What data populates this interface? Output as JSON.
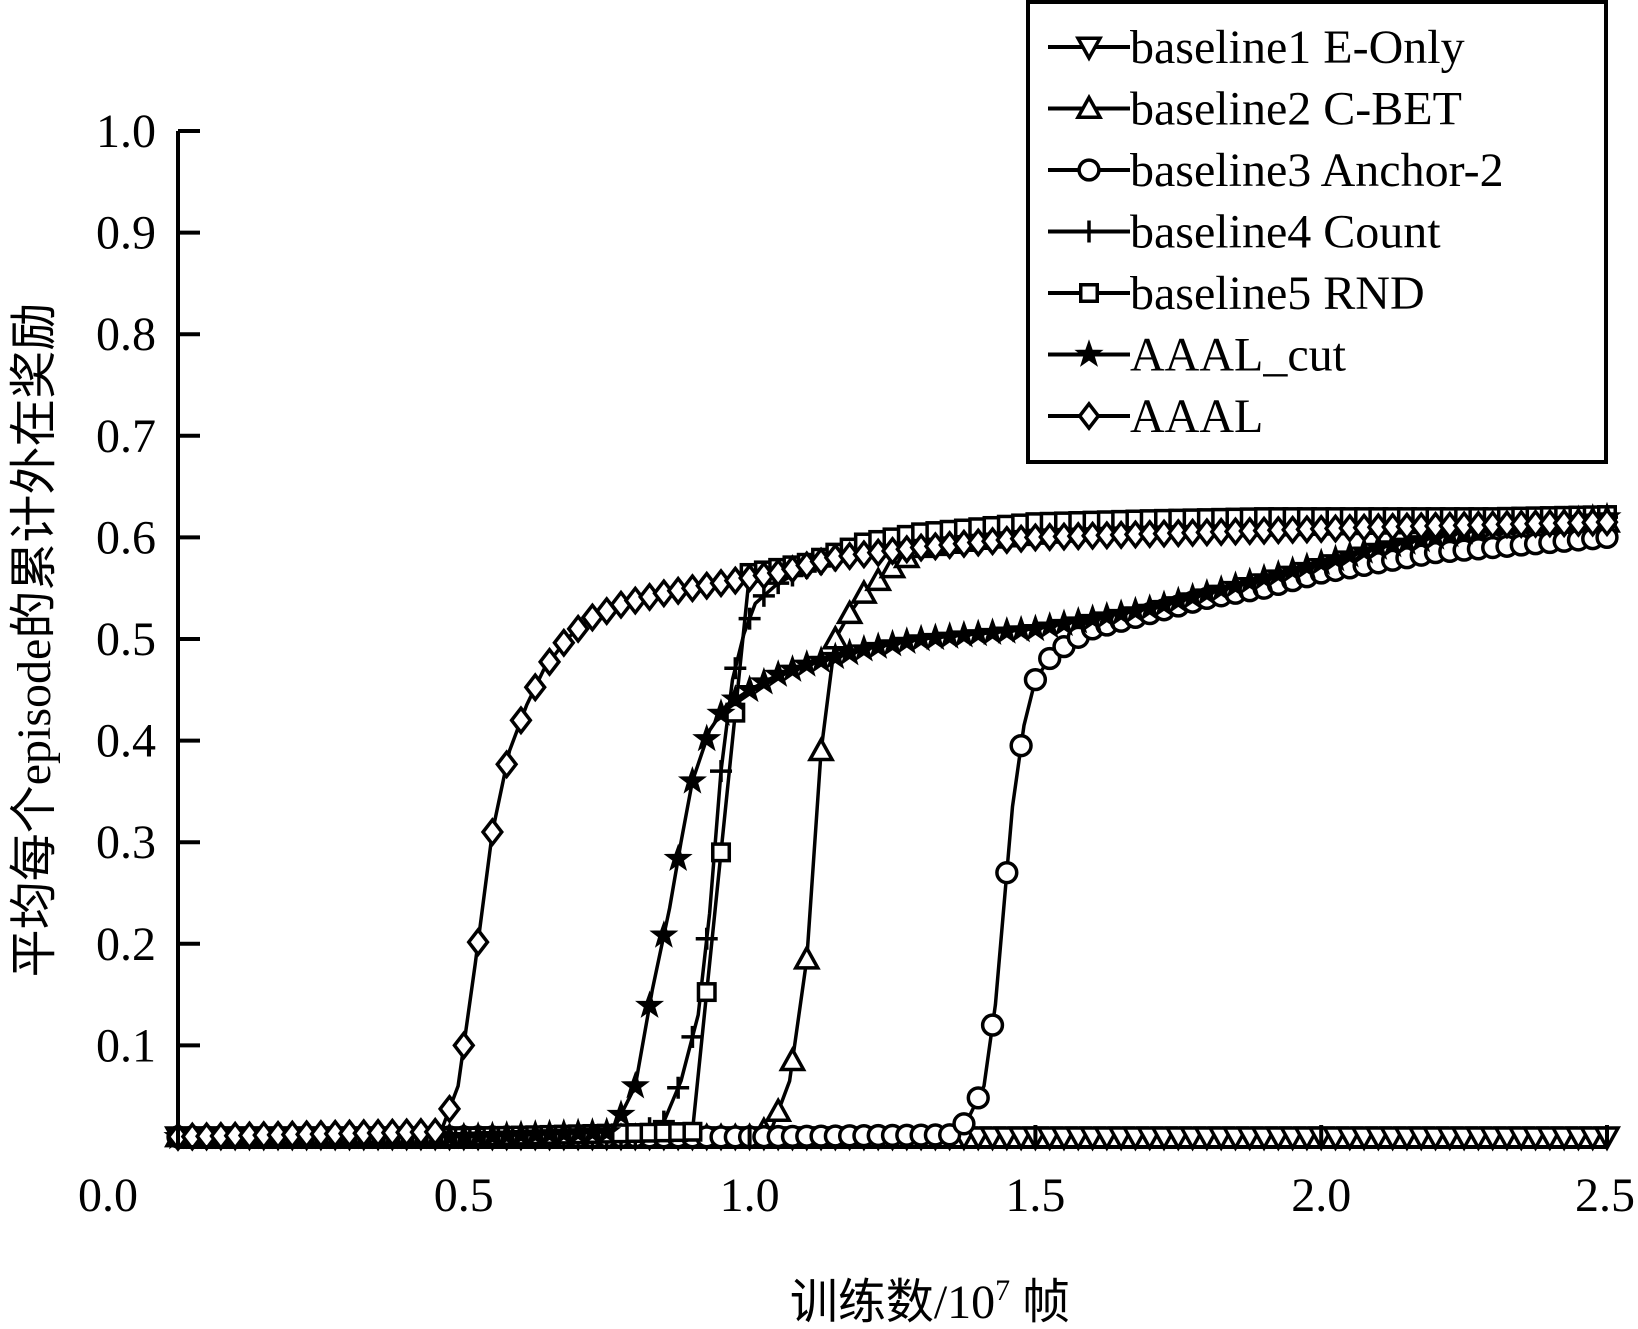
{
  "chart_data": {
    "type": "line",
    "xlabel": "训练数/10⁷ 帧",
    "xlabel_main": "训练数/10",
    "xlabel_sup": "7",
    "xlabel_unit": " 帧",
    "ylabel": "平均每个episode的累计外在奖励",
    "xlim": [
      0,
      2.5
    ],
    "ylim": [
      0,
      1.0
    ],
    "x_ticks": [
      "0.0",
      "0.5",
      "1.0",
      "1.5",
      "2.0",
      "2.5"
    ],
    "y_ticks": [
      "0.1",
      "0.2",
      "0.3",
      "0.4",
      "0.5",
      "0.6",
      "0.7",
      "0.8",
      "0.9",
      "1.0"
    ],
    "grid": false,
    "legend_position": "top-right",
    "series": [
      {
        "name": "baseline1 E-Only",
        "marker": "triangle-down",
        "x": [
          0.0,
          0.5,
          1.0,
          1.5,
          2.0,
          2.5
        ],
        "y": [
          0.01,
          0.01,
          0.01,
          0.01,
          0.01,
          0.01
        ]
      },
      {
        "name": "baseline2 C-BET",
        "marker": "triangle-up",
        "x": [
          0.0,
          0.5,
          1.0,
          1.04,
          1.07,
          1.1,
          1.125,
          1.15,
          1.175,
          1.2,
          1.25,
          1.3,
          1.4,
          1.5,
          1.6,
          1.8,
          2.0,
          2.2,
          2.5
        ],
        "y": [
          0.01,
          0.01,
          0.01,
          0.02,
          0.065,
          0.185,
          0.39,
          0.5,
          0.525,
          0.545,
          0.57,
          0.59,
          0.598,
          0.603,
          0.607,
          0.61,
          0.612,
          0.614,
          0.615
        ]
      },
      {
        "name": "baseline3 Anchor-2",
        "marker": "circle",
        "x": [
          0.0,
          0.5,
          1.0,
          1.35,
          1.38,
          1.41,
          1.43,
          1.46,
          1.48,
          1.5,
          1.53,
          1.57,
          1.6,
          1.7,
          1.8,
          1.9,
          2.0,
          2.1,
          2.2,
          2.3,
          2.4,
          2.5
        ],
        "y": [
          0.01,
          0.01,
          0.01,
          0.012,
          0.025,
          0.06,
          0.14,
          0.335,
          0.415,
          0.46,
          0.485,
          0.5,
          0.51,
          0.525,
          0.54,
          0.55,
          0.565,
          0.575,
          0.585,
          0.59,
          0.595,
          0.6
        ]
      },
      {
        "name": "baseline4 Count",
        "marker": "plus",
        "x": [
          0.0,
          0.5,
          0.8,
          0.85,
          0.88,
          0.91,
          0.93,
          0.95,
          0.97,
          0.99,
          1.01,
          1.05,
          1.1,
          1.2,
          1.3,
          1.5,
          1.7,
          2.0,
          2.2,
          2.5
        ],
        "y": [
          0.01,
          0.01,
          0.012,
          0.025,
          0.065,
          0.13,
          0.23,
          0.37,
          0.46,
          0.505,
          0.535,
          0.555,
          0.57,
          0.585,
          0.595,
          0.605,
          0.61,
          0.615,
          0.615,
          0.62
        ]
      },
      {
        "name": "baseline5 RND",
        "marker": "square",
        "x": [
          0.0,
          0.5,
          0.9,
          1.0,
          1.1,
          1.15,
          1.2,
          1.3,
          1.4,
          1.5,
          1.7,
          1.9,
          2.1,
          2.3,
          2.5
        ],
        "y": [
          0.01,
          0.01,
          0.015,
          0.565,
          0.575,
          0.585,
          0.595,
          0.605,
          0.61,
          0.615,
          0.618,
          0.62,
          0.62,
          0.62,
          0.622
        ]
      },
      {
        "name": "AAAL_cut",
        "marker": "star",
        "x": [
          0.0,
          0.5,
          0.76,
          0.8,
          0.83,
          0.86,
          0.88,
          0.9,
          0.93,
          0.96,
          1.0,
          1.05,
          1.1,
          1.2,
          1.3,
          1.4,
          1.5,
          1.6,
          1.7,
          1.8,
          1.9,
          2.0,
          2.1,
          2.2,
          2.3,
          2.4,
          2.5
        ],
        "y": [
          0.01,
          0.01,
          0.015,
          0.06,
          0.155,
          0.235,
          0.3,
          0.36,
          0.41,
          0.435,
          0.45,
          0.465,
          0.475,
          0.49,
          0.5,
          0.505,
          0.51,
          0.52,
          0.53,
          0.545,
          0.56,
          0.575,
          0.59,
          0.6,
          0.61,
          0.615,
          0.62
        ]
      },
      {
        "name": "AAAL",
        "marker": "diamond",
        "x": [
          0.0,
          0.46,
          0.49,
          0.52,
          0.55,
          0.58,
          0.61,
          0.64,
          0.68,
          0.72,
          0.78,
          0.85,
          0.95,
          1.05,
          1.15,
          1.3,
          1.5,
          1.8,
          2.1,
          2.5
        ],
        "y": [
          0.01,
          0.015,
          0.06,
          0.18,
          0.31,
          0.39,
          0.435,
          0.47,
          0.5,
          0.52,
          0.535,
          0.545,
          0.555,
          0.565,
          0.58,
          0.59,
          0.6,
          0.605,
          0.61,
          0.615
        ]
      }
    ]
  }
}
